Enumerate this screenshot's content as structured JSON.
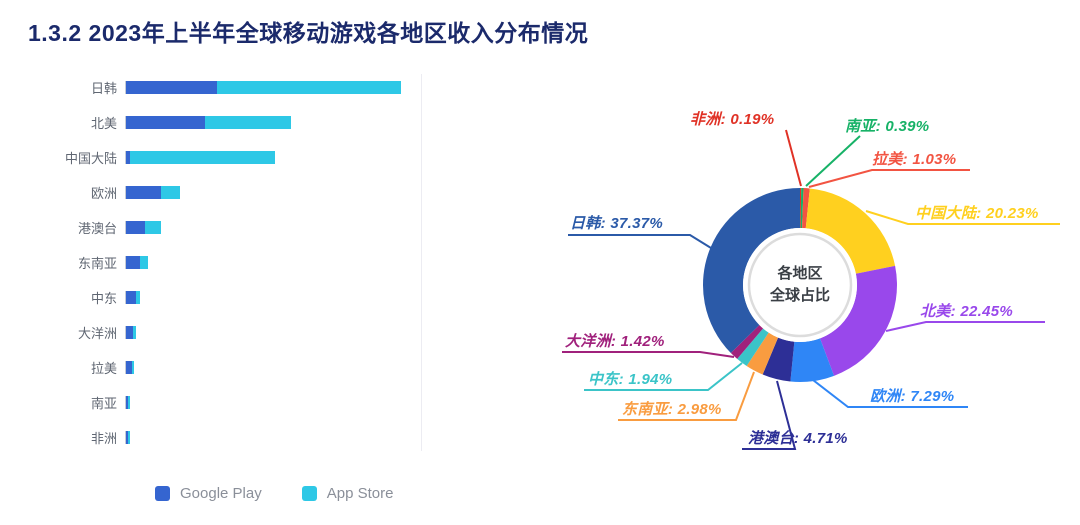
{
  "title": "1.3.2  2023年上半年全球移动游戏各地区收入分布情况",
  "chart_data": [
    {
      "type": "bar",
      "orientation": "horizontal",
      "stacked": true,
      "title": "",
      "xlabel": "",
      "ylabel": "",
      "xlim": [
        0,
        40
      ],
      "grid": "minimal",
      "legend_position": "bottom",
      "categories": [
        "日韩",
        "北美",
        "中国大陆",
        "欧洲",
        "港澳台",
        "东南亚",
        "中东",
        "大洋洲",
        "拉美",
        "南亚",
        "非洲"
      ],
      "series": [
        {
          "name": "Google Play",
          "color": "#3565d0",
          "values": [
            12.4,
            10.7,
            0.5,
            4.7,
            2.6,
            1.95,
            1.35,
            0.9,
            0.78,
            0.28,
            0.14
          ]
        },
        {
          "name": "App Store",
          "color": "#2ec8e6",
          "values": [
            24.97,
            11.75,
            19.73,
            2.59,
            2.11,
            1.03,
            0.59,
            0.52,
            0.25,
            0.11,
            0.05
          ]
        }
      ]
    },
    {
      "type": "pie",
      "donut": true,
      "center_label": [
        "各地区",
        "全球占比"
      ],
      "legend_position": "none",
      "slices": [
        {
          "label": "非洲",
          "value": 0.19,
          "color": "#e03226"
        },
        {
          "label": "南亚",
          "value": 0.39,
          "color": "#17b267"
        },
        {
          "label": "拉美",
          "value": 1.03,
          "color": "#f25442"
        },
        {
          "label": "中国大陆",
          "value": 20.23,
          "color": "#ffd01f"
        },
        {
          "label": "北美",
          "value": 22.45,
          "color": "#9948eb"
        },
        {
          "label": "欧洲",
          "value": 7.29,
          "color": "#2f86f6"
        },
        {
          "label": "港澳台",
          "value": 4.71,
          "color": "#2d2f96"
        },
        {
          "label": "东南亚",
          "value": 2.98,
          "color": "#f99c40"
        },
        {
          "label": "中东",
          "value": 1.94,
          "color": "#3bc4c8"
        },
        {
          "label": "大洋洲",
          "value": 1.42,
          "color": "#a0217c"
        },
        {
          "label": "日韩",
          "value": 37.37,
          "color": "#2b5aa8"
        }
      ]
    }
  ]
}
